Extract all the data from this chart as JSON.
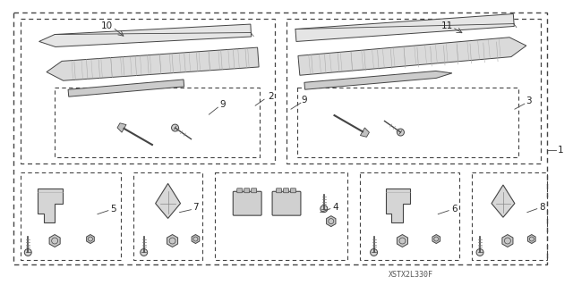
{
  "bg_color": "#ffffff",
  "watermark": "XSTX2L330F",
  "fig_width": 6.4,
  "fig_height": 3.19,
  "line_color": "#444444",
  "text_color": "#222222"
}
